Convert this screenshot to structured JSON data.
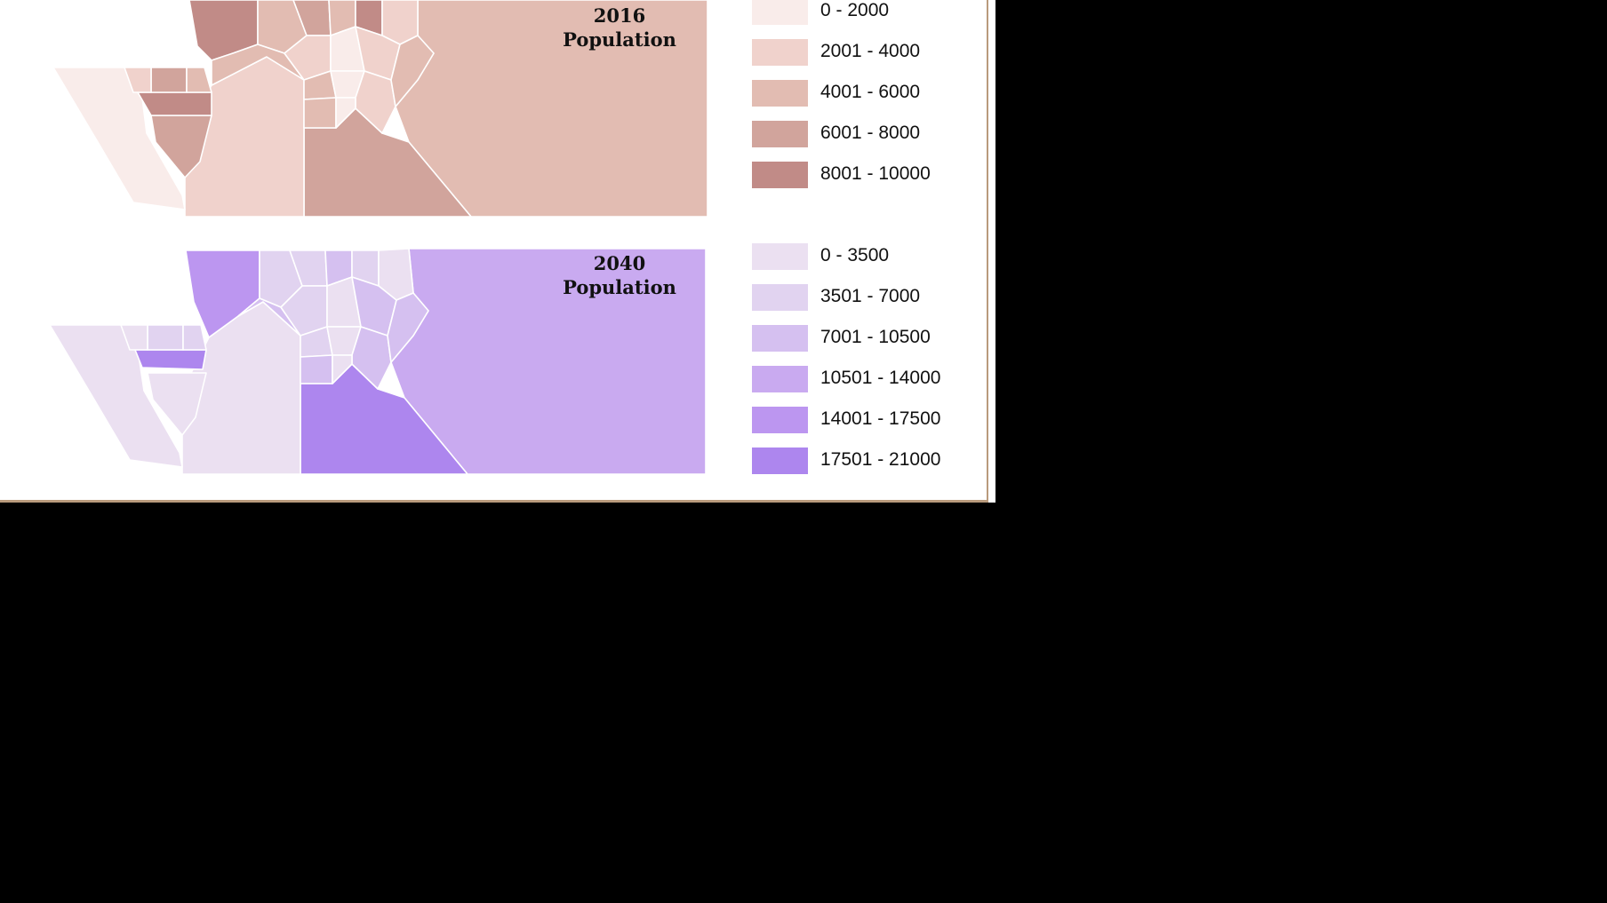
{
  "maps": [
    {
      "id": "map-2016",
      "title_line1": "2016",
      "title_line2": "Population",
      "legend": [
        {
          "label": "0 - 2000",
          "color": "#f9ecea"
        },
        {
          "label": "2001 - 4000",
          "color": "#f0d2cc"
        },
        {
          "label": "4001 - 6000",
          "color": "#e2bcb2"
        },
        {
          "label": "6001 - 8000",
          "color": "#d1a49c"
        },
        {
          "label": "8001 - 10000",
          "color": "#c18b87"
        }
      ]
    },
    {
      "id": "map-2040",
      "title_line1": "2040",
      "title_line2": "Population",
      "legend": [
        {
          "label": "0 - 3500",
          "color": "#ebe0f1"
        },
        {
          "label": "3501 - 7000",
          "color": "#e1d3f0"
        },
        {
          "label": "7001 - 10500",
          "color": "#d5c0f0"
        },
        {
          "label": "10501 - 14000",
          "color": "#c9aaf0"
        },
        {
          "label": "14001 - 17500",
          "color": "#bc96f0"
        },
        {
          "label": "17501 - 21000",
          "color": "#ad86ee"
        }
      ]
    }
  ]
}
